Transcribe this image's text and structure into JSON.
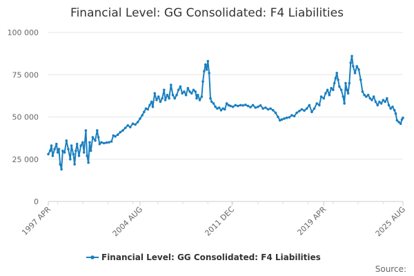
{
  "chart_data": {
    "type": "line",
    "title": "Financial Level: GG Consolidated: F4 Liabilities",
    "xlabel": "",
    "ylabel": "",
    "x_tick_labels": [
      "1997 APR",
      "2004 AUG",
      "2011 DEC",
      "2019 APR",
      "2025 AUG"
    ],
    "x_tick_years": [
      1997.25,
      2004.58,
      2011.92,
      2019.25,
      2025.58
    ],
    "xlim": [
      1997.25,
      2025.58
    ],
    "ylim": [
      0,
      100000
    ],
    "y_ticks": [
      0,
      25000,
      50000,
      75000,
      100000
    ],
    "y_tick_labels": [
      "0",
      "25 000",
      "50 000",
      "75 000",
      "100 000"
    ],
    "grid": true,
    "legend_position": "bottom",
    "series": [
      {
        "name": "Financial Level: GG Consolidated: F4 Liabilities",
        "color": "#1a7fbf",
        "points": [
          [
            1997.25,
            28000
          ],
          [
            1997.4,
            30000
          ],
          [
            1997.5,
            33000
          ],
          [
            1997.6,
            27000
          ],
          [
            1997.75,
            31000
          ],
          [
            1997.9,
            34000
          ],
          [
            1998.0,
            29000
          ],
          [
            1998.1,
            31000
          ],
          [
            1998.2,
            22000
          ],
          [
            1998.3,
            19000
          ],
          [
            1998.4,
            30000
          ],
          [
            1998.55,
            29000
          ],
          [
            1998.7,
            36000
          ],
          [
            1998.85,
            31000
          ],
          [
            1999.0,
            25000
          ],
          [
            1999.1,
            33000
          ],
          [
            1999.25,
            28000
          ],
          [
            1999.35,
            22000
          ],
          [
            1999.45,
            30000
          ],
          [
            1999.55,
            34000
          ],
          [
            1999.7,
            27000
          ],
          [
            1999.85,
            33000
          ],
          [
            2000.0,
            35000
          ],
          [
            2000.1,
            29000
          ],
          [
            2000.25,
            42000
          ],
          [
            2000.35,
            27000
          ],
          [
            2000.45,
            23000
          ],
          [
            2000.55,
            35000
          ],
          [
            2000.65,
            30000
          ],
          [
            2000.8,
            38000
          ],
          [
            2001.0,
            36000
          ],
          [
            2001.15,
            42000
          ],
          [
            2001.25,
            38000
          ],
          [
            2001.35,
            34000
          ],
          [
            2001.5,
            35000
          ],
          [
            2001.7,
            34500
          ],
          [
            2001.9,
            34800
          ],
          [
            2002.1,
            35000
          ],
          [
            2002.3,
            35500
          ],
          [
            2002.45,
            39000
          ],
          [
            2002.6,
            38500
          ],
          [
            2002.8,
            39500
          ],
          [
            2003.0,
            41000
          ],
          [
            2003.2,
            42000
          ],
          [
            2003.4,
            43500
          ],
          [
            2003.6,
            45000
          ],
          [
            2003.8,
            44000
          ],
          [
            2004.0,
            46000
          ],
          [
            2004.2,
            45500
          ],
          [
            2004.4,
            47000
          ],
          [
            2004.58,
            49000
          ],
          [
            2004.75,
            51000
          ],
          [
            2004.9,
            53000
          ],
          [
            2005.05,
            55000
          ],
          [
            2005.2,
            54500
          ],
          [
            2005.35,
            57000
          ],
          [
            2005.5,
            59000
          ],
          [
            2005.6,
            56000
          ],
          [
            2005.75,
            64000
          ],
          [
            2005.9,
            60000
          ],
          [
            2006.05,
            62000
          ],
          [
            2006.2,
            59000
          ],
          [
            2006.35,
            61000
          ],
          [
            2006.5,
            66000
          ],
          [
            2006.6,
            60000
          ],
          [
            2006.75,
            63000
          ],
          [
            2006.9,
            61000
          ],
          [
            2007.05,
            69000
          ],
          [
            2007.2,
            63000
          ],
          [
            2007.35,
            61000
          ],
          [
            2007.5,
            63000
          ],
          [
            2007.65,
            66000
          ],
          [
            2007.8,
            68000
          ],
          [
            2007.95,
            64000
          ],
          [
            2008.1,
            65000
          ],
          [
            2008.25,
            63000
          ],
          [
            2008.4,
            67000
          ],
          [
            2008.55,
            65000
          ],
          [
            2008.7,
            64000
          ],
          [
            2008.85,
            66000
          ],
          [
            2009.0,
            65000
          ],
          [
            2009.1,
            61000
          ],
          [
            2009.2,
            63000
          ],
          [
            2009.35,
            60000
          ],
          [
            2009.5,
            62000
          ],
          [
            2009.6,
            71000
          ],
          [
            2009.7,
            77000
          ],
          [
            2009.8,
            81000
          ],
          [
            2009.9,
            78000
          ],
          [
            2010.0,
            83000
          ],
          [
            2010.1,
            76000
          ],
          [
            2010.2,
            61000
          ],
          [
            2010.3,
            59000
          ],
          [
            2010.45,
            58000
          ],
          [
            2010.6,
            56000
          ],
          [
            2010.75,
            55000
          ],
          [
            2010.9,
            55500
          ],
          [
            2011.05,
            54000
          ],
          [
            2011.2,
            55000
          ],
          [
            2011.35,
            54500
          ],
          [
            2011.5,
            58000
          ],
          [
            2011.65,
            57000
          ],
          [
            2011.8,
            56500
          ],
          [
            2012.0,
            56000
          ],
          [
            2012.2,
            57000
          ],
          [
            2012.4,
            56500
          ],
          [
            2012.6,
            57000
          ],
          [
            2012.8,
            56800
          ],
          [
            2013.0,
            57200
          ],
          [
            2013.2,
            56500
          ],
          [
            2013.4,
            55800
          ],
          [
            2013.6,
            57000
          ],
          [
            2013.8,
            55500
          ],
          [
            2014.0,
            56000
          ],
          [
            2014.2,
            56800
          ],
          [
            2014.4,
            55000
          ],
          [
            2014.6,
            55500
          ],
          [
            2014.8,
            54500
          ],
          [
            2015.0,
            55000
          ],
          [
            2015.2,
            54000
          ],
          [
            2015.4,
            52500
          ],
          [
            2015.6,
            50000
          ],
          [
            2015.75,
            48000
          ],
          [
            2015.9,
            48500
          ],
          [
            2016.1,
            49000
          ],
          [
            2016.3,
            49500
          ],
          [
            2016.5,
            49800
          ],
          [
            2016.7,
            51000
          ],
          [
            2016.9,
            50500
          ],
          [
            2017.1,
            52500
          ],
          [
            2017.3,
            53500
          ],
          [
            2017.5,
            54500
          ],
          [
            2017.7,
            53800
          ],
          [
            2017.9,
            55000
          ],
          [
            2018.1,
            57000
          ],
          [
            2018.3,
            53000
          ],
          [
            2018.5,
            55000
          ],
          [
            2018.7,
            58000
          ],
          [
            2018.9,
            57000
          ],
          [
            2019.05,
            62000
          ],
          [
            2019.25,
            61000
          ],
          [
            2019.4,
            64000
          ],
          [
            2019.55,
            66000
          ],
          [
            2019.7,
            63000
          ],
          [
            2019.85,
            67000
          ],
          [
            2020.0,
            66000
          ],
          [
            2020.1,
            70000
          ],
          [
            2020.2,
            73000
          ],
          [
            2020.3,
            76000
          ],
          [
            2020.4,
            72000
          ],
          [
            2020.5,
            68000
          ],
          [
            2020.65,
            66000
          ],
          [
            2020.8,
            62000
          ],
          [
            2020.9,
            58000
          ],
          [
            2021.0,
            70000
          ],
          [
            2021.1,
            66000
          ],
          [
            2021.2,
            64000
          ],
          [
            2021.3,
            70000
          ],
          [
            2021.4,
            82000
          ],
          [
            2021.5,
            86000
          ],
          [
            2021.6,
            80000
          ],
          [
            2021.75,
            76000
          ],
          [
            2021.9,
            80000
          ],
          [
            2022.05,
            78000
          ],
          [
            2022.2,
            72000
          ],
          [
            2022.35,
            65000
          ],
          [
            2022.5,
            63000
          ],
          [
            2022.65,
            62000
          ],
          [
            2022.8,
            63000
          ],
          [
            2022.95,
            61000
          ],
          [
            2023.1,
            60000
          ],
          [
            2023.25,
            62000
          ],
          [
            2023.4,
            59000
          ],
          [
            2023.55,
            57000
          ],
          [
            2023.7,
            59000
          ],
          [
            2023.85,
            58000
          ],
          [
            2024.0,
            60000
          ],
          [
            2024.15,
            59000
          ],
          [
            2024.3,
            61000
          ],
          [
            2024.45,
            57000
          ],
          [
            2024.6,
            55000
          ],
          [
            2024.75,
            56000
          ],
          [
            2024.9,
            54000
          ],
          [
            2025.0,
            52000
          ],
          [
            2025.1,
            48000
          ],
          [
            2025.25,
            47000
          ],
          [
            2025.4,
            46000
          ],
          [
            2025.5,
            48500
          ],
          [
            2025.58,
            49500
          ]
        ]
      }
    ],
    "legend_entries": [
      "Financial Level: GG Consolidated: F4 Liabilities"
    ],
    "source_label": "Source:"
  }
}
